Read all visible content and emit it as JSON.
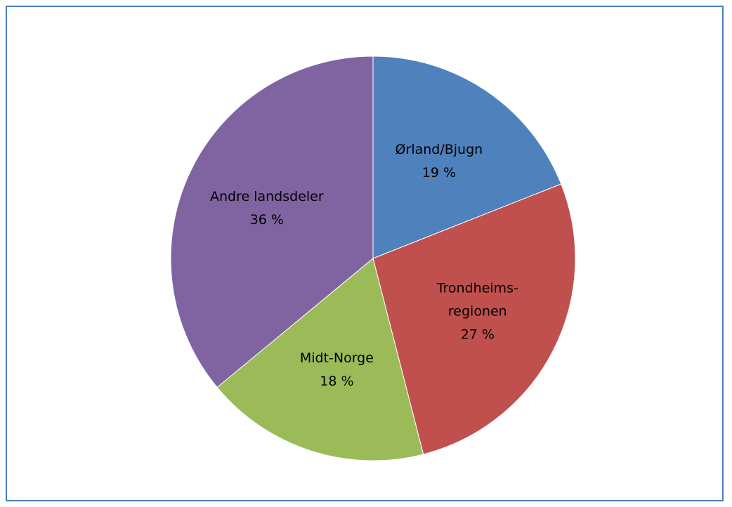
{
  "chart_data": {
    "type": "pie",
    "categories": [
      "Ørland/Bjugn",
      "Trondheims-\nregionen",
      "Midt-Norge",
      "Andre landsdeler"
    ],
    "values": [
      19,
      27,
      18,
      36
    ],
    "value_labels": [
      "19 %",
      "27 %",
      "18 %",
      "36 %"
    ],
    "colors": [
      "#4f81bd",
      "#c0504d",
      "#9bbb59",
      "#8064a2"
    ]
  }
}
